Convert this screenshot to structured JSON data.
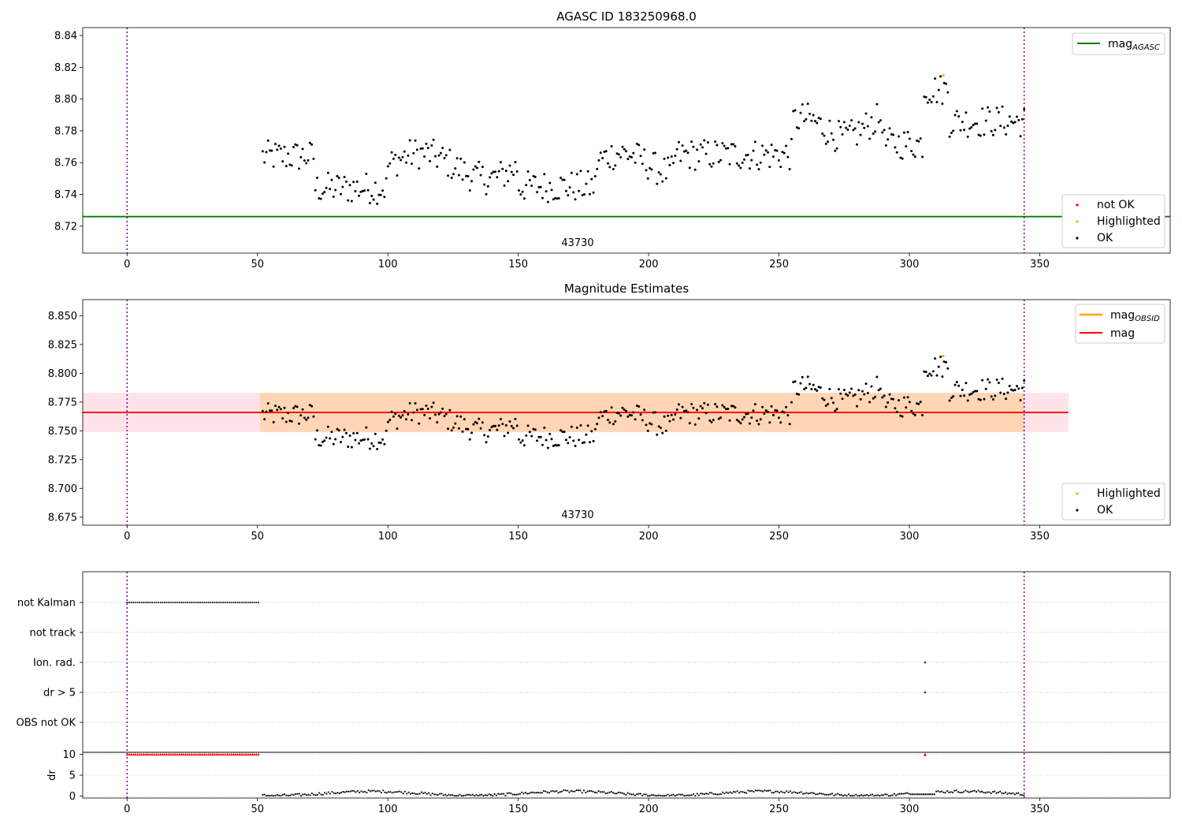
{
  "figure": {
    "panels": [
      {
        "id": "agasc",
        "title": "AGASC ID 183250968.0",
        "obsid_label": "43730"
      },
      {
        "id": "estimates",
        "title": "Magnitude Estimates",
        "obsid_label": "43730"
      },
      {
        "id": "flags",
        "title": ""
      }
    ],
    "legend_top": [
      {
        "label": "mag",
        "subscript": "AGASC",
        "color": "#008000",
        "kind": "line"
      }
    ],
    "legend_top_points": [
      {
        "label": "not OK",
        "color": "#ff0000",
        "kind": "point"
      },
      {
        "label": "Highlighted",
        "color": "#ffa500",
        "kind": "point"
      },
      {
        "label": "OK",
        "color": "#000000",
        "kind": "point"
      }
    ],
    "legend_mid": [
      {
        "label": "mag",
        "subscript": "OBSID",
        "color": "#ffa500",
        "kind": "line"
      },
      {
        "label": "mag",
        "subscript": "",
        "color": "#ff0000",
        "kind": "line"
      }
    ],
    "legend_mid_points": [
      {
        "label": "Highlighted",
        "color": "#ffa500",
        "kind": "point"
      },
      {
        "label": "OK",
        "color": "#000000",
        "kind": "point"
      }
    ]
  },
  "chart_data": [
    {
      "type": "scatter",
      "title": "AGASC ID 183250968.0",
      "xlim": [
        -17,
        400
      ],
      "ylim": [
        8.703,
        8.845
      ],
      "xticks": [
        0,
        50,
        100,
        150,
        200,
        250,
        300,
        350
      ],
      "yticks": [
        8.72,
        8.74,
        8.76,
        8.78,
        8.8,
        8.82,
        8.84
      ],
      "mag_agasc": 8.726,
      "vlines": [
        0,
        344
      ],
      "obsid_text": "43730",
      "highlighted": [
        {
          "x": 313,
          "y": 8.815
        }
      ],
      "series": [
        {
          "name": "OK",
          "x_start": 52,
          "x_end": 344
        }
      ]
    },
    {
      "type": "scatter",
      "title": "Magnitude Estimates",
      "xlim": [
        -17,
        400
      ],
      "ylim": [
        8.668,
        8.864
      ],
      "xticks": [
        0,
        50,
        100,
        150,
        200,
        250,
        300,
        350
      ],
      "yticks": [
        8.675,
        8.7,
        8.725,
        8.75,
        8.775,
        8.8,
        8.825,
        8.85
      ],
      "mag": 8.766,
      "mag_band": [
        8.749,
        8.783
      ],
      "mag_band_extent": [
        -17,
        361
      ],
      "mag_obsid": 8.766,
      "mag_obsid_band": [
        8.749,
        8.783
      ],
      "mag_obsid_band_extent": [
        51,
        344
      ],
      "vlines": [
        0,
        344
      ],
      "obsid_text": "43730",
      "highlighted": [
        {
          "x": 313,
          "y": 8.815
        }
      ]
    },
    {
      "type": "scatter",
      "xlim": [
        -17,
        400
      ],
      "xticks": [
        0,
        50,
        100,
        150,
        200,
        250,
        300,
        350
      ],
      "flag_rows": [
        "not Kalman",
        "not track",
        "Ion. rad.",
        "dr > 5",
        "OBS not OK"
      ],
      "flag_points": [
        {
          "row": "not Kalman",
          "x_start": 0,
          "x_end": 51
        },
        {
          "row": "Ion. rad.",
          "x_start": 306,
          "x_end": 306
        },
        {
          "row": "dr > 5",
          "x_start": 306,
          "x_end": 306
        }
      ],
      "dr_ylabel": "dr",
      "dr_yticks": [
        0,
        5,
        10
      ],
      "dr_ylim": [
        -0.5,
        10.5
      ],
      "dr_clipped": [
        {
          "x_start": 0,
          "x_end": 51,
          "y": 10
        },
        {
          "x_start": 306,
          "x_end": 306,
          "y": 10
        }
      ],
      "dr_ok_range": [
        52,
        344
      ],
      "vlines": [
        0,
        344
      ]
    }
  ]
}
